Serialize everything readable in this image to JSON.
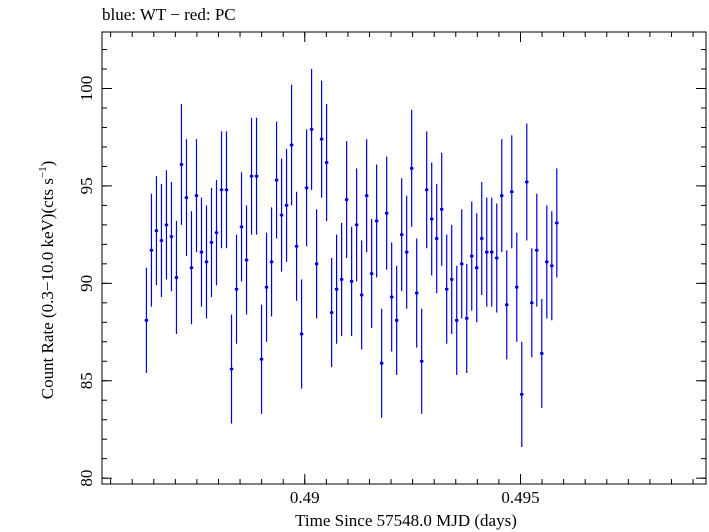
{
  "chart_data": {
    "type": "scatter",
    "title": "blue: WT − red: PC",
    "xlabel": "Time Since 57548.0 MJD (days)",
    "ylabel_main": "Count Rate (0.3−10.0 keV)(cts s",
    "ylabel_sup": "−1",
    "ylabel_close": ")",
    "xlim": [
      0.4853,
      0.4993
    ],
    "ylim": [
      79.7,
      102.9
    ],
    "x_ticks": [
      {
        "v": 0.49,
        "label": "0.49"
      },
      {
        "v": 0.495,
        "label": "0.495"
      }
    ],
    "x_minor_step": 0.0005,
    "y_ticks": [
      {
        "v": 80,
        "label": "80"
      },
      {
        "v": 85,
        "label": "85"
      },
      {
        "v": 90,
        "label": "90"
      },
      {
        "v": 95,
        "label": "95"
      },
      {
        "v": 100,
        "label": "100"
      }
    ],
    "y_minor_step": 1,
    "grid": false,
    "series": [
      {
        "color": "#0000dd",
        "x_start": 0.48633,
        "x_step": 0.000116,
        "x_halfwidth": 4e-05,
        "y": [
          88.1,
          91.7,
          92.7,
          92.2,
          93.0,
          92.4,
          90.3,
          96.1,
          94.4,
          90.8,
          94.5,
          91.6,
          91.1,
          92.1,
          92.6,
          94.8,
          94.8,
          85.6,
          89.7,
          92.9,
          91.2,
          95.5,
          95.5,
          86.1,
          89.8,
          91.1,
          95.3,
          93.5,
          94.0,
          97.1,
          91.9,
          87.4,
          94.9,
          97.9,
          91.0,
          97.4,
          96.2,
          88.5,
          89.7,
          90.2,
          94.3,
          90.1,
          93.0,
          89.4,
          94.5,
          90.5,
          93.2,
          85.9,
          93.6,
          89.3,
          88.1,
          92.5,
          91.6,
          95.9,
          89.5,
          86.0,
          94.8,
          93.3,
          92.3,
          93.8,
          89.7,
          90.2,
          88.1,
          91.0,
          88.2,
          91.4,
          90.8,
          92.3,
          91.6,
          91.6,
          91.3,
          94.5,
          88.9,
          94.7,
          89.8,
          84.3,
          95.2,
          89.0,
          91.7,
          86.4,
          91.1,
          90.9,
          93.1
        ],
        "err": [
          2.7,
          2.9,
          2.8,
          2.9,
          2.8,
          2.8,
          2.9,
          3.1,
          3.0,
          2.9,
          2.9,
          2.8,
          2.9,
          2.8,
          2.7,
          3.0,
          3.0,
          2.8,
          2.8,
          2.8,
          2.8,
          3.0,
          3.0,
          2.8,
          2.8,
          2.8,
          3.0,
          2.9,
          2.9,
          3.1,
          2.8,
          2.8,
          3.0,
          3.1,
          2.8,
          3.0,
          3.0,
          2.8,
          2.8,
          2.9,
          3.0,
          2.8,
          2.9,
          2.8,
          2.9,
          2.8,
          2.9,
          2.8,
          2.9,
          2.8,
          2.8,
          2.9,
          2.9,
          3.0,
          2.8,
          2.7,
          3.0,
          2.9,
          2.8,
          2.9,
          2.8,
          2.8,
          2.8,
          2.8,
          2.8,
          2.8,
          2.8,
          2.9,
          2.8,
          2.8,
          2.8,
          2.9,
          2.8,
          2.9,
          2.8,
          2.7,
          3.0,
          2.8,
          2.9,
          2.8,
          2.9,
          2.8,
          2.8
        ]
      }
    ]
  }
}
